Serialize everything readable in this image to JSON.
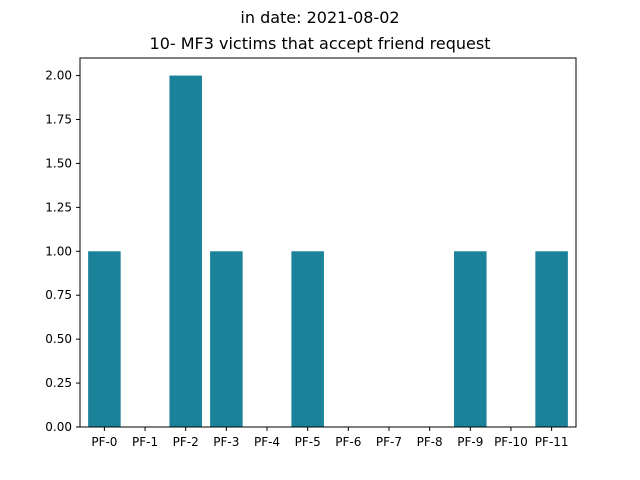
{
  "chart_data": {
    "type": "bar",
    "title": "in date: 2021-08-02",
    "subtitle": "10- MF3 victims that accept friend request",
    "xlabel": "",
    "ylabel": "",
    "categories": [
      "PF-0",
      "PF-1",
      "PF-2",
      "PF-3",
      "PF-4",
      "PF-5",
      "PF-6",
      "PF-7",
      "PF-8",
      "PF-9",
      "PF-10",
      "PF-11"
    ],
    "values": [
      1,
      0,
      2,
      1,
      0,
      1,
      0,
      0,
      0,
      1,
      0,
      1
    ],
    "ylim": [
      0,
      2.1
    ],
    "yticks": [
      "0.00",
      "0.25",
      "0.50",
      "0.75",
      "1.00",
      "1.25",
      "1.50",
      "1.75",
      "2.00"
    ],
    "bar_color": "#1a8299",
    "grid": false,
    "legend": "none"
  }
}
